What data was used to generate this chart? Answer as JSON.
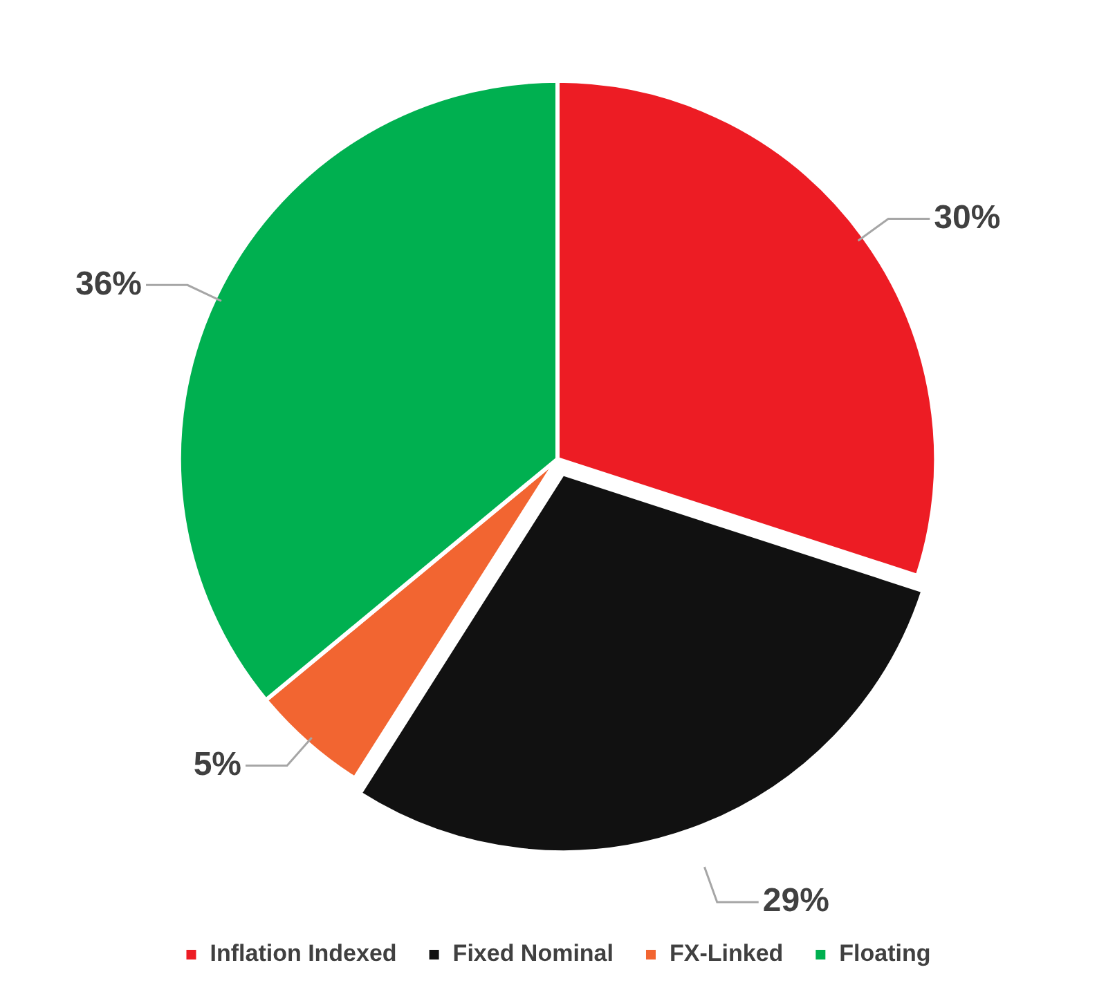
{
  "chart_data": {
    "type": "pie",
    "categories": [
      "Inflation Indexed",
      "Fixed Nominal",
      "FX-Linked",
      "Floating"
    ],
    "values": [
      30,
      29,
      5,
      36
    ],
    "colors": [
      "#ed1c24",
      "#111111",
      "#f26531",
      "#00b050"
    ],
    "value_labels": [
      "30%",
      "29%",
      "5%",
      "36%"
    ],
    "legend": "bottom"
  }
}
